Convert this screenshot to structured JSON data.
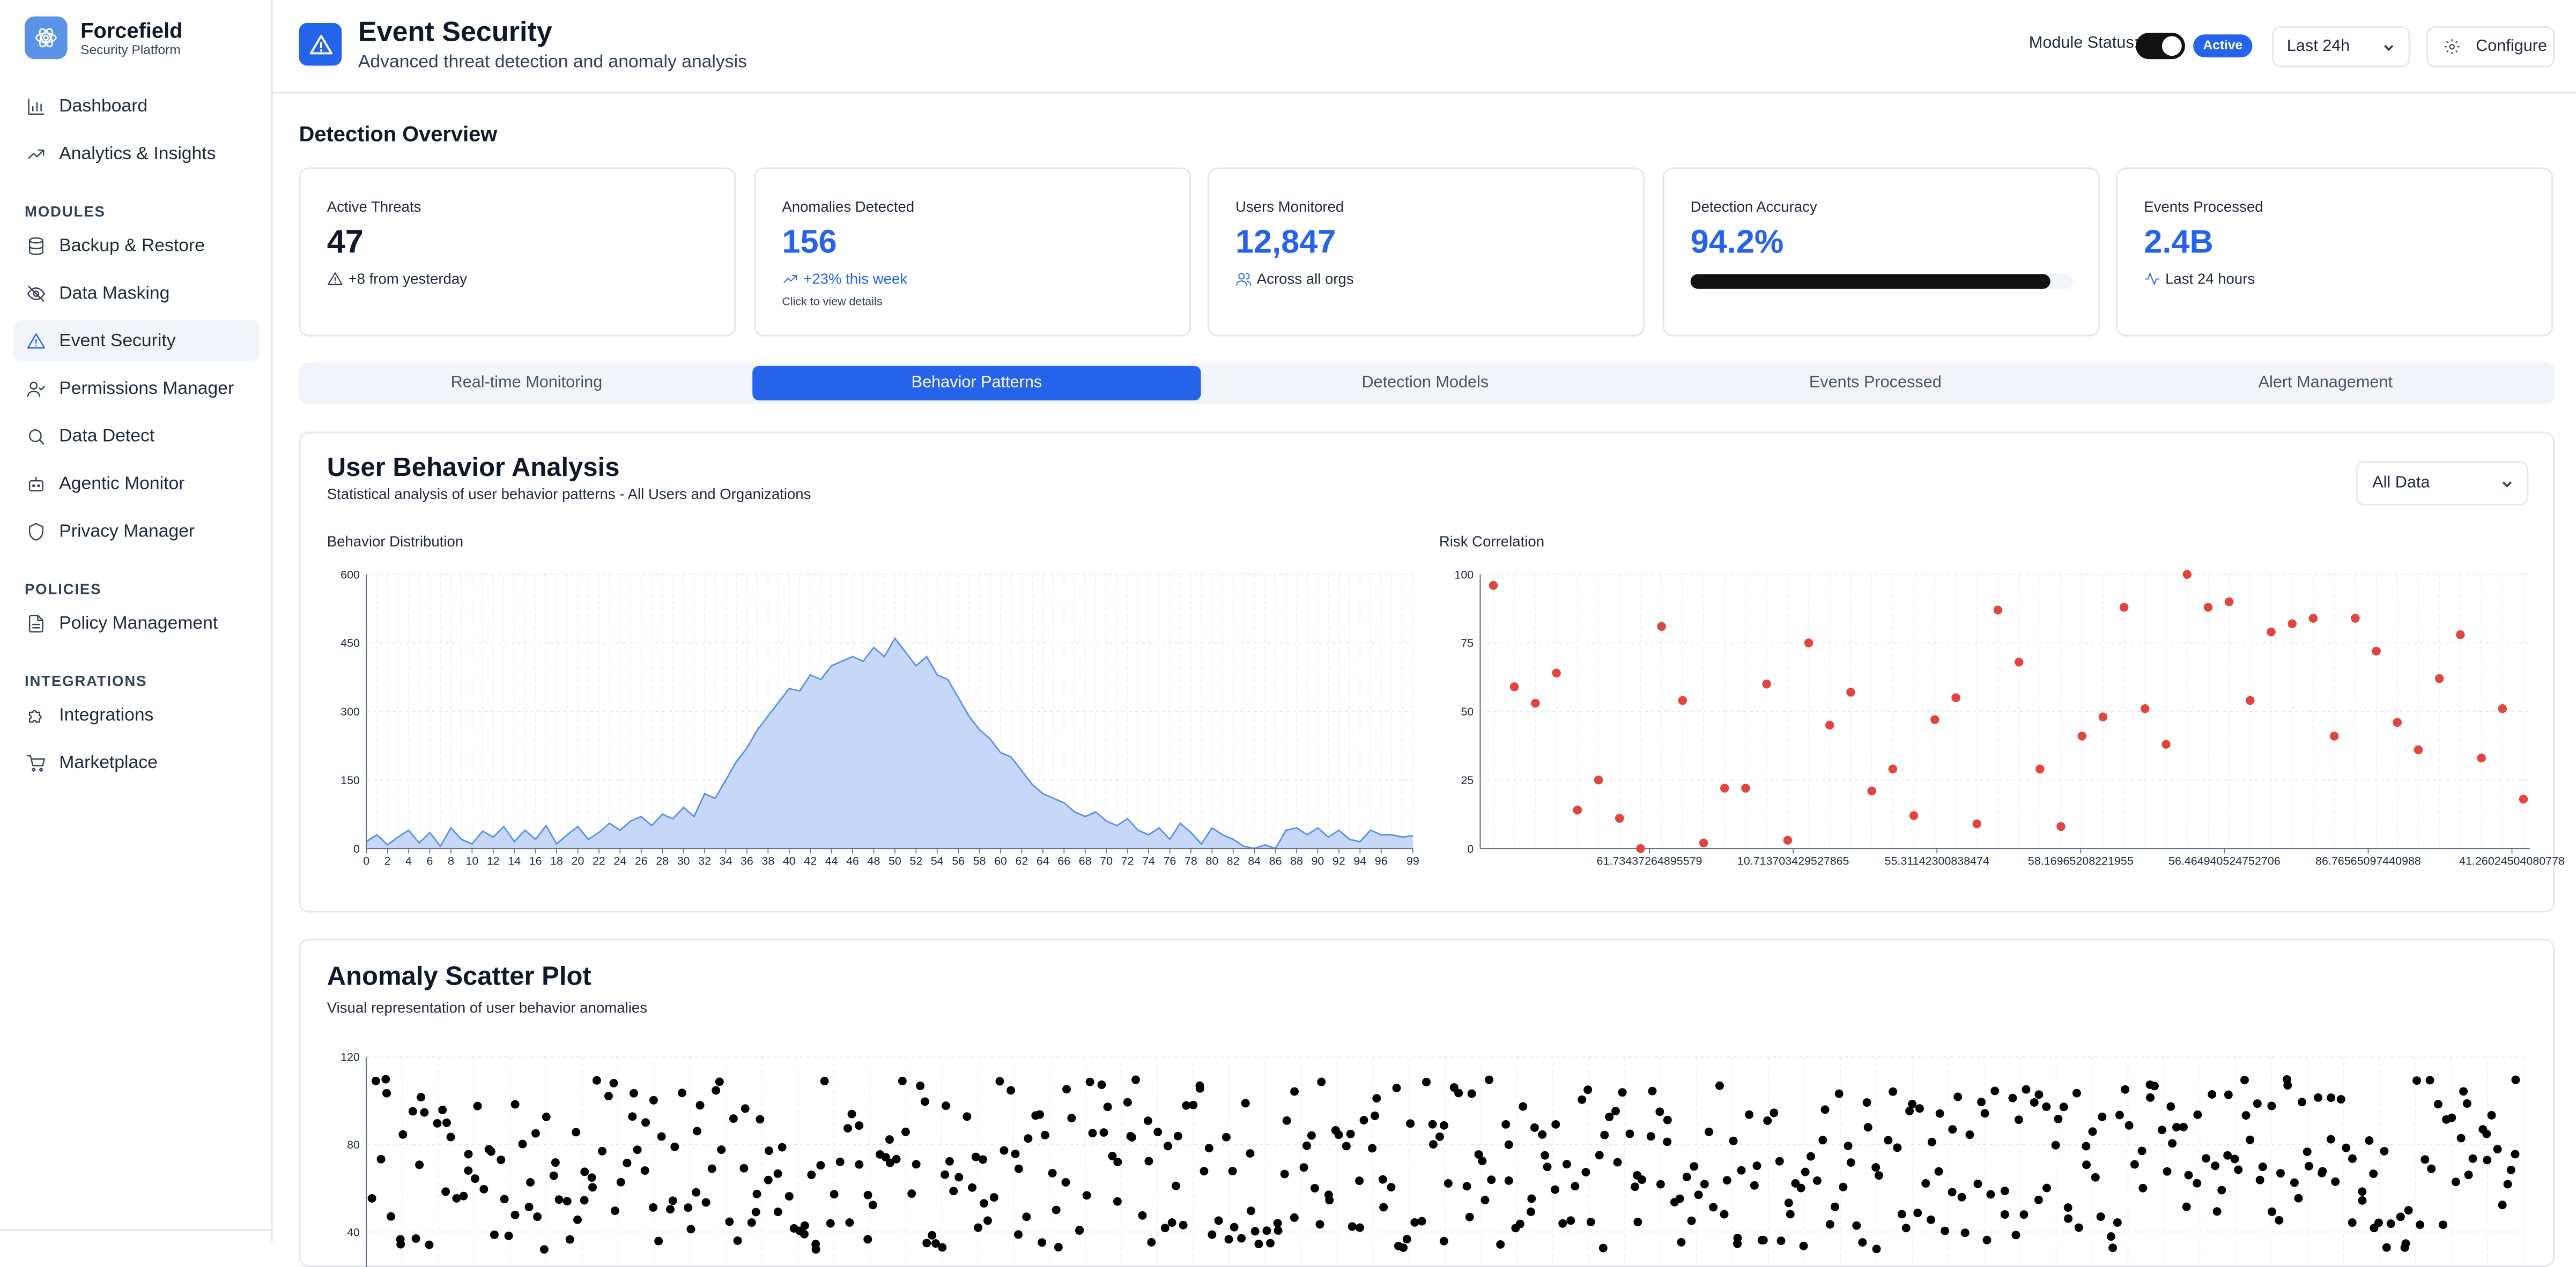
{
  "app": {
    "name": "Forcefield",
    "subtitle": "Security Platform"
  },
  "sidebar": {
    "top_items": [
      {
        "label": "Dashboard",
        "icon": "bar-chart-icon"
      },
      {
        "label": "Analytics & Insights",
        "icon": "trending-up-icon"
      }
    ],
    "sections": [
      {
        "title": "MODULES",
        "items": [
          {
            "label": "Backup & Restore",
            "icon": "database-icon"
          },
          {
            "label": "Data Masking",
            "icon": "eye-off-icon"
          },
          {
            "label": "Event Security",
            "icon": "alert-triangle-icon",
            "active": true
          },
          {
            "label": "Permissions Manager",
            "icon": "user-check-icon"
          },
          {
            "label": "Data Detect",
            "icon": "search-icon"
          },
          {
            "label": "Agentic Monitor",
            "icon": "bot-icon"
          },
          {
            "label": "Privacy Manager",
            "icon": "shield-icon"
          }
        ]
      },
      {
        "title": "POLICIES",
        "items": [
          {
            "label": "Policy Management",
            "icon": "file-text-icon"
          }
        ]
      },
      {
        "title": "INTEGRATIONS",
        "items": [
          {
            "label": "Integrations",
            "icon": "puzzle-icon"
          },
          {
            "label": "Marketplace",
            "icon": "cart-icon"
          }
        ]
      }
    ]
  },
  "header": {
    "title": "Event Security",
    "subtitle": "Advanced threat detection and anomaly analysis",
    "module_status_label": "Module Status:",
    "module_status_badge": "Active",
    "time_range": "Last 24h",
    "configure_label": "Configure"
  },
  "overview": {
    "title": "Detection Overview",
    "cards": {
      "active_threats": {
        "label": "Active Threats",
        "value": "47",
        "sub": "+8 from yesterday"
      },
      "anomalies": {
        "label": "Anomalies Detected",
        "value": "156",
        "sub": "+23% this week",
        "note": "Click to view details"
      },
      "users": {
        "label": "Users Monitored",
        "value": "12,847",
        "sub": "Across all orgs"
      },
      "accuracy": {
        "label": "Detection Accuracy",
        "value": "94.2%",
        "progress": 0.942
      },
      "events": {
        "label": "Events Processed",
        "value": "2.4B",
        "sub": "Last 24 hours"
      }
    }
  },
  "tabs": [
    {
      "label": "Real-time Monitoring"
    },
    {
      "label": "Behavior Patterns",
      "active": true
    },
    {
      "label": "Detection Models"
    },
    {
      "label": "Events Processed"
    },
    {
      "label": "Alert Management"
    }
  ],
  "behavior": {
    "title": "User Behavior Analysis",
    "subtitle": "Statistical analysis of user behavior patterns - All Users and Organizations",
    "filter": "All Data",
    "distribution_label": "Behavior Distribution",
    "correlation_label": "Risk Correlation"
  },
  "anomaly": {
    "title": "Anomaly Scatter Plot",
    "subtitle": "Visual representation of user behavior anomalies"
  },
  "colors": {
    "accent": "#2563eb",
    "area_fill": "#c7d7f7",
    "area_stroke": "#5b8ee6",
    "risk_point": "#e0453f",
    "anomaly_point": "#000000"
  },
  "chart_data": [
    {
      "id": "behavior-distribution",
      "type": "area",
      "title": "Behavior Distribution",
      "ylim": [
        0,
        600
      ],
      "yticks": [
        0,
        150,
        300,
        450,
        600
      ],
      "x_tick_labels": [
        "0",
        "2",
        "4",
        "6",
        "8",
        "10",
        "12",
        "14",
        "16",
        "18",
        "20",
        "22",
        "24",
        "26",
        "28",
        "30",
        "32",
        "34",
        "36",
        "38",
        "40",
        "42",
        "44",
        "46",
        "48",
        "50",
        "52",
        "54",
        "56",
        "58",
        "60",
        "62",
        "64",
        "66",
        "68",
        "70",
        "72",
        "74",
        "76",
        "78",
        "80",
        "82",
        "84",
        "86",
        "88",
        "90",
        "92",
        "94",
        "96",
        "99"
      ],
      "x": [
        0,
        1,
        2,
        3,
        4,
        5,
        6,
        7,
        8,
        9,
        10,
        11,
        12,
        13,
        14,
        15,
        16,
        17,
        18,
        19,
        20,
        21,
        22,
        23,
        24,
        25,
        26,
        27,
        28,
        29,
        30,
        31,
        32,
        33,
        34,
        35,
        36,
        37,
        38,
        39,
        40,
        41,
        42,
        43,
        44,
        45,
        46,
        47,
        48,
        49,
        50,
        51,
        52,
        53,
        54,
        55,
        56,
        57,
        58,
        59,
        60,
        61,
        62,
        63,
        64,
        65,
        66,
        67,
        68,
        69,
        70,
        71,
        72,
        73,
        74,
        75,
        76,
        77,
        78,
        79,
        80,
        81,
        82,
        83,
        84,
        85,
        86,
        87,
        88,
        89,
        90,
        91,
        92,
        93,
        94,
        95,
        96,
        97,
        98,
        99
      ],
      "values": [
        15,
        30,
        8,
        25,
        40,
        12,
        35,
        5,
        45,
        20,
        10,
        38,
        25,
        48,
        15,
        40,
        20,
        50,
        10,
        30,
        48,
        20,
        35,
        55,
        40,
        60,
        70,
        50,
        75,
        65,
        90,
        70,
        120,
        110,
        150,
        190,
        220,
        260,
        290,
        320,
        350,
        345,
        380,
        370,
        400,
        410,
        420,
        410,
        440,
        420,
        460,
        430,
        400,
        420,
        380,
        370,
        330,
        290,
        260,
        240,
        210,
        200,
        170,
        140,
        120,
        110,
        100,
        80,
        70,
        80,
        60,
        50,
        65,
        40,
        30,
        45,
        20,
        55,
        35,
        10,
        45,
        30,
        20,
        5,
        0,
        8,
        0,
        40,
        45,
        30,
        45,
        25,
        40,
        20,
        15,
        40,
        30,
        30,
        25,
        28
      ]
    },
    {
      "id": "risk-correlation",
      "type": "scatter",
      "title": "Risk Correlation",
      "ylim": [
        0,
        100
      ],
      "yticks": [
        0,
        25,
        50,
        75,
        100
      ],
      "x_tick_labels": [
        "61.73437264895579",
        "10.713703429527865",
        "55.31142300838474",
        "58.16965208221955",
        "56.464940524752706",
        "86.76565097440988",
        "41.26024504080778"
      ],
      "points": [
        [
          0,
          96
        ],
        [
          1,
          59
        ],
        [
          2,
          53
        ],
        [
          3,
          64
        ],
        [
          4,
          14
        ],
        [
          5,
          25
        ],
        [
          6,
          11
        ],
        [
          7,
          0
        ],
        [
          8,
          81
        ],
        [
          9,
          54
        ],
        [
          10,
          2
        ],
        [
          11,
          22
        ],
        [
          12,
          22
        ],
        [
          13,
          60
        ],
        [
          14,
          3
        ],
        [
          15,
          75
        ],
        [
          16,
          45
        ],
        [
          17,
          57
        ],
        [
          18,
          21
        ],
        [
          19,
          29
        ],
        [
          20,
          12
        ],
        [
          21,
          47
        ],
        [
          22,
          55
        ],
        [
          23,
          9
        ],
        [
          24,
          87
        ],
        [
          25,
          68
        ],
        [
          26,
          29
        ],
        [
          27,
          8
        ],
        [
          28,
          41
        ],
        [
          29,
          48
        ],
        [
          30,
          88
        ],
        [
          31,
          51
        ],
        [
          32,
          38
        ],
        [
          33,
          100
        ],
        [
          34,
          88
        ],
        [
          35,
          90
        ],
        [
          36,
          54
        ],
        [
          37,
          79
        ],
        [
          38,
          82
        ],
        [
          39,
          84
        ],
        [
          40,
          41
        ],
        [
          41,
          84
        ],
        [
          42,
          72
        ],
        [
          43,
          46
        ],
        [
          44,
          36
        ],
        [
          45,
          62
        ],
        [
          46,
          78
        ],
        [
          47,
          33
        ],
        [
          48,
          51
        ],
        [
          49,
          18
        ]
      ]
    },
    {
      "id": "anomaly-scatter",
      "type": "scatter",
      "title": "Anomaly Scatter Plot",
      "ylim": [
        0,
        120
      ],
      "yticks": [
        40,
        80,
        120
      ],
      "y_tick_labels": [
        "40",
        "80",
        "120"
      ],
      "x": "seq:0..499",
      "y": "seed:7|min:32|max:110",
      "note": "500 black points densely filling the visible y-range from about 35 to 110"
    }
  ]
}
